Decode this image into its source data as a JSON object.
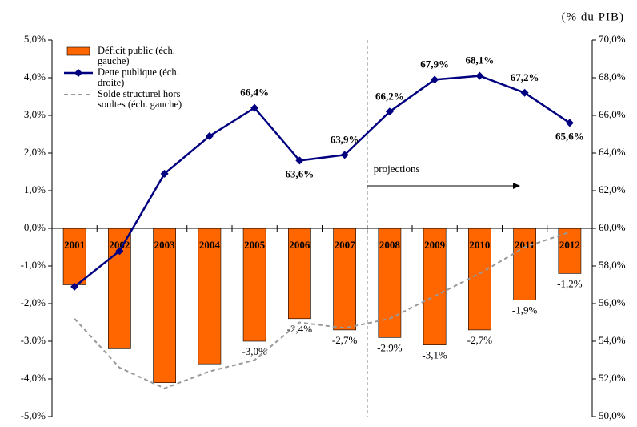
{
  "chart_data": {
    "type": "bar-line",
    "unit_note": "(% du PIB)",
    "annotation": "projections",
    "categories": [
      "2001",
      "2002",
      "2003",
      "2004",
      "2005",
      "2006",
      "2007",
      "2008",
      "2009",
      "2010",
      "2011",
      "2012"
    ],
    "series": [
      {
        "name": "Déficit public (éch. gauche)",
        "type": "bar",
        "axis": "y",
        "color": "#ff6600",
        "values": [
          -1.5,
          -3.2,
          -4.1,
          -3.6,
          -3.0,
          -2.4,
          -2.7,
          -2.9,
          -3.1,
          -2.7,
          -1.9,
          -1.2
        ],
        "value_labels": [
          null,
          null,
          null,
          null,
          "-3,0%",
          "-2,4%",
          "-2,7%",
          "-2,9%",
          "-3,1%",
          "-2,7%",
          "-1,9%",
          "-1,2%"
        ]
      },
      {
        "name": "Dette publique (éch. droite)",
        "type": "line",
        "axis": "y2",
        "color": "#000080",
        "values": [
          56.9,
          58.8,
          62.9,
          64.9,
          66.4,
          63.6,
          63.9,
          66.2,
          67.9,
          68.1,
          67.2,
          65.6
        ],
        "value_labels": [
          null,
          null,
          null,
          null,
          "66,4%",
          "63,6%",
          "63,9%",
          "66,2%",
          "67,9%",
          "68,1%",
          "67,2%",
          "65,6%"
        ]
      },
      {
        "name": "Solde structurel hors soultes (éch. gauche)",
        "type": "dashed",
        "axis": "y",
        "color": "#999999",
        "values": [
          -2.4,
          -3.7,
          -4.25,
          -3.8,
          -3.5,
          -2.5,
          -2.65,
          -2.4,
          -1.8,
          -1.2,
          -0.5,
          -0.1
        ]
      }
    ],
    "ylim": [
      -5,
      5
    ],
    "yticks": [
      {
        "value": -5,
        "label": "-5,0%"
      },
      {
        "value": -4,
        "label": "-4,0%"
      },
      {
        "value": -3,
        "label": "-3,0%"
      },
      {
        "value": -2,
        "label": "-2,0%"
      },
      {
        "value": -1,
        "label": "-1,0%"
      },
      {
        "value": 0,
        "label": "0,0%"
      },
      {
        "value": 1,
        "label": "1,0%"
      },
      {
        "value": 2,
        "label": "2,0%"
      },
      {
        "value": 3,
        "label": "3,0%"
      },
      {
        "value": 4,
        "label": "4,0%"
      },
      {
        "value": 5,
        "label": "5,0%"
      }
    ],
    "y2lim": [
      50,
      70
    ],
    "y2ticks": [
      {
        "value": 50,
        "label": "50,0%"
      },
      {
        "value": 52,
        "label": "52,0%"
      },
      {
        "value": 54,
        "label": "54,0%"
      },
      {
        "value": 56,
        "label": "56,0%"
      },
      {
        "value": 58,
        "label": "58,0%"
      },
      {
        "value": 60,
        "label": "60,0%"
      },
      {
        "value": 62,
        "label": "62,0%"
      },
      {
        "value": 64,
        "label": "64,0%"
      },
      {
        "value": 66,
        "label": "66,0%"
      },
      {
        "value": 68,
        "label": "68,0%"
      },
      {
        "value": 70,
        "label": "70,0%"
      }
    ]
  }
}
